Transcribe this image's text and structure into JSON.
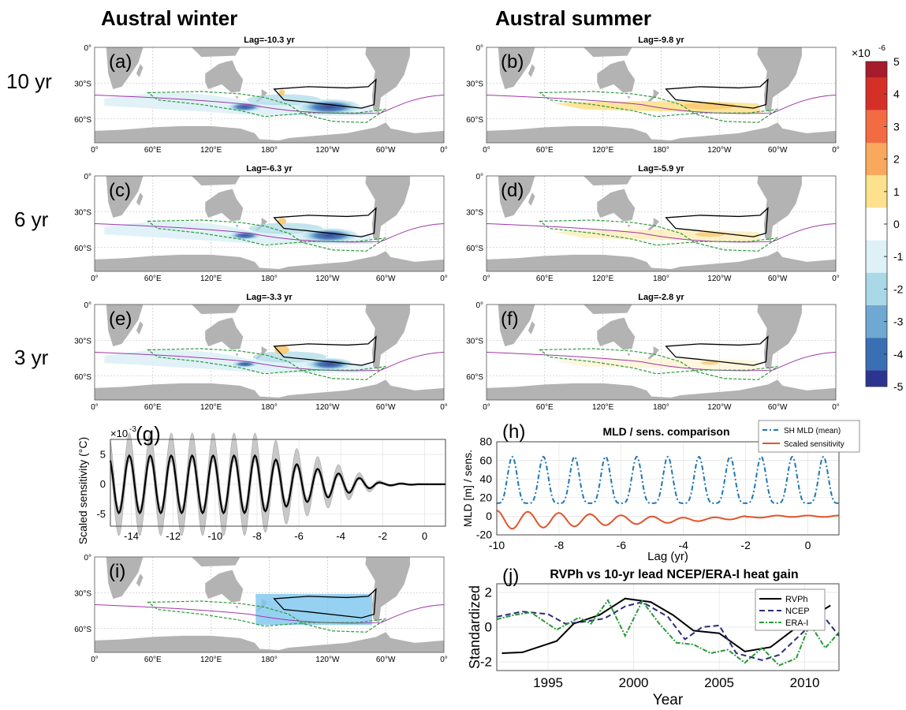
{
  "headers": {
    "left": "Austral winter",
    "right": "Austral summer",
    "rows": [
      "10 yr",
      "6 yr",
      "3 yr"
    ]
  },
  "map_axes": {
    "x_ticks": [
      "0°",
      "60°E",
      "120°E",
      "180°",
      "120°W",
      "60°W",
      "0°"
    ],
    "y_ticks": [
      "0°",
      "30°S",
      "60°S"
    ]
  },
  "map_panels": [
    {
      "id": "a",
      "letter": "(a)",
      "title": "Lag=-10.3 yr",
      "anomaly": "negative",
      "strength": 1.0
    },
    {
      "id": "b",
      "letter": "(b)",
      "title": "Lag=-9.8 yr",
      "anomaly": "positive",
      "strength": 0.9
    },
    {
      "id": "c",
      "letter": "(c)",
      "title": "Lag=-6.3 yr",
      "anomaly": "negative",
      "strength": 0.9
    },
    {
      "id": "d",
      "letter": "(d)",
      "title": "Lag=-5.9 yr",
      "anomaly": "positive",
      "strength": 0.5
    },
    {
      "id": "e",
      "letter": "(e)",
      "title": "Lag=-3.3 yr",
      "anomaly": "negative",
      "strength": 0.7
    },
    {
      "id": "f",
      "letter": "(f)",
      "title": "Lag=-2.8 yr",
      "anomaly": "positive",
      "strength": 0.3
    },
    {
      "id": "i",
      "letter": "(i)",
      "title": "",
      "anomaly": "box",
      "strength": 0
    }
  ],
  "colorbar": {
    "multiplier": "×10",
    "exponent": "-6",
    "ticks": [
      "5",
      "4",
      "3",
      "2",
      "1",
      "0",
      "-1",
      "-2",
      "-3",
      "-4",
      "-5"
    ],
    "colors": [
      "#a51c2c",
      "#d43027",
      "#f26b43",
      "#f9a95e",
      "#fde18d",
      "#ffffff",
      "#ddf1f7",
      "#a9d8e6",
      "#6fa8d0",
      "#3a6fb3",
      "#2b3590"
    ]
  },
  "chart_data": [
    {
      "id": "g",
      "type": "line",
      "letter": "(g)",
      "ylabel": "Scaled sensitivity (°C)",
      "multiplier": "×10",
      "exponent": "-3",
      "xlim": [
        -15,
        1
      ],
      "ylim": [
        -7,
        7.5
      ],
      "xticks": [
        -14,
        -12,
        -10,
        -8,
        -6,
        -4,
        -2,
        0
      ],
      "yticks": [
        -5,
        0,
        5
      ],
      "series": [
        {
          "kind": "mean",
          "color": "#000000",
          "decay_start": -8,
          "decay_end": -2,
          "period_yr": 1,
          "amp_early": 4.8,
          "amp_late": 0.2
        },
        {
          "kind": "spread",
          "color": "#aaaaaa",
          "amp_early": 6.5
        }
      ]
    },
    {
      "id": "h",
      "type": "line",
      "letter": "(h)",
      "title": "MLD / sens. comparison",
      "xlabel": "Lag (yr)",
      "ylabel": "MLD [m] / sens.",
      "xlim": [
        -10,
        1
      ],
      "ylim": [
        -20,
        80
      ],
      "xticks": [
        -10,
        -8,
        -6,
        -4,
        -2,
        0
      ],
      "yticks": [
        80,
        60,
        40,
        20,
        0,
        -20
      ],
      "series": [
        {
          "name": "SH MLD (mean)",
          "color": "#1f77b4",
          "dash": "6,3,2,3",
          "low": 14,
          "high": 64,
          "period_yr": 1
        },
        {
          "name": "Scaled sensitivity",
          "color": "#e2542a",
          "dash": "",
          "amp_early": 10,
          "offset": -4,
          "decay_end": -2
        }
      ]
    },
    {
      "id": "j",
      "type": "line",
      "letter": "(j)",
      "title": "RVPh vs 10-yr lead NCEP/ERA-I heat gain",
      "xlabel": "Year",
      "ylabel": "Standardized",
      "xlim": [
        1992,
        2012
      ],
      "ylim": [
        -2.5,
        2.5
      ],
      "xticks": [
        1995,
        2000,
        2005,
        2010
      ],
      "yticks": [
        2,
        0,
        -2
      ],
      "series": [
        {
          "name": "RVPh",
          "color": "#000000",
          "dash": "",
          "x": [
            1992.3,
            1993.5,
            1995.5,
            1996.5,
            1998,
            1999.5,
            2001,
            2002.3,
            2003.5,
            2005,
            2006.5,
            2008,
            2010,
            2011.5
          ],
          "y": [
            -1.5,
            -1.45,
            -0.8,
            0.2,
            0.7,
            1.65,
            1.45,
            0.7,
            -0.2,
            -0.35,
            -1.4,
            -1.15,
            0.35,
            1.25
          ]
        },
        {
          "name": "NCEP",
          "color": "#2c2c7a",
          "dash": "7,4",
          "x": [
            1992,
            1993.5,
            1995,
            1996,
            1997,
            1998.3,
            1999.5,
            2000.5,
            2002,
            2003,
            2004,
            2005,
            2006,
            2007.5,
            2008.5,
            2010,
            2010.8,
            2012
          ],
          "y": [
            0.6,
            0.9,
            0.75,
            0.2,
            0.3,
            0.5,
            1.2,
            1.45,
            0.6,
            -0.7,
            0.0,
            0.1,
            -1.5,
            -1.9,
            -1.6,
            -0.2,
            1.0,
            -0.5
          ]
        },
        {
          "name": "ERA-I",
          "color": "#2a9a3a",
          "dash": "6,2,2,2",
          "x": [
            1992,
            1993,
            1994,
            1995.5,
            1996.8,
            1997.5,
            1998.5,
            1999.5,
            2000.5,
            2001.5,
            2002.5,
            2003.5,
            2004.5,
            2005.5,
            2006.5,
            2007.5,
            2008.5,
            2009.5,
            2010.3,
            2011.2,
            2012
          ],
          "y": [
            0.45,
            0.7,
            0.85,
            -0.15,
            0.55,
            0.2,
            1.55,
            -0.5,
            1.5,
            0.2,
            -0.9,
            -1.0,
            -1.5,
            -1.3,
            -2.05,
            -1.2,
            -2.2,
            -1.8,
            0.2,
            -1.2,
            -0.3
          ]
        }
      ]
    }
  ]
}
